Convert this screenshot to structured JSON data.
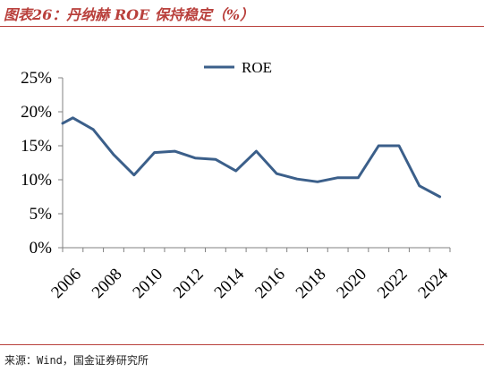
{
  "header": {
    "title": "图表26：丹纳赫 ROE 保持稳定（%）"
  },
  "footer": {
    "source": "来源：Wind，国金证券研究所"
  },
  "colors": {
    "accent": "#b9403c",
    "line": "#3b5f8a",
    "axis": "#808080"
  },
  "chart_data": {
    "type": "line",
    "title": "",
    "xlabel": "",
    "ylabel": "",
    "x": [
      2006,
      2006.5,
      2007.5,
      2008.5,
      2009.5,
      2010.5,
      2011.5,
      2012.5,
      2013.5,
      2014.5,
      2015.5,
      2016.5,
      2017.5,
      2018.5,
      2019.5,
      2020.5,
      2021.5,
      2022.5,
      2023.5,
      2024.5
    ],
    "series": [
      {
        "name": "ROE",
        "values": [
          18.3,
          19.1,
          17.4,
          13.7,
          10.7,
          14.0,
          14.2,
          13.2,
          13.0,
          11.3,
          14.2,
          10.9,
          10.1,
          9.7,
          10.3,
          10.3,
          15.0,
          15.0,
          9.1,
          7.5
        ]
      }
    ],
    "ylim": [
      0,
      25
    ],
    "yticks": [
      0,
      5,
      10,
      15,
      20,
      25
    ],
    "ytick_labels": [
      "0%",
      "5%",
      "10%",
      "15%",
      "20%",
      "25%"
    ],
    "xticks": [
      2006,
      2008,
      2010,
      2012,
      2014,
      2016,
      2018,
      2020,
      2022,
      2024
    ],
    "xlim": [
      2006,
      2025
    ],
    "grid": false,
    "legend": "top-center"
  }
}
